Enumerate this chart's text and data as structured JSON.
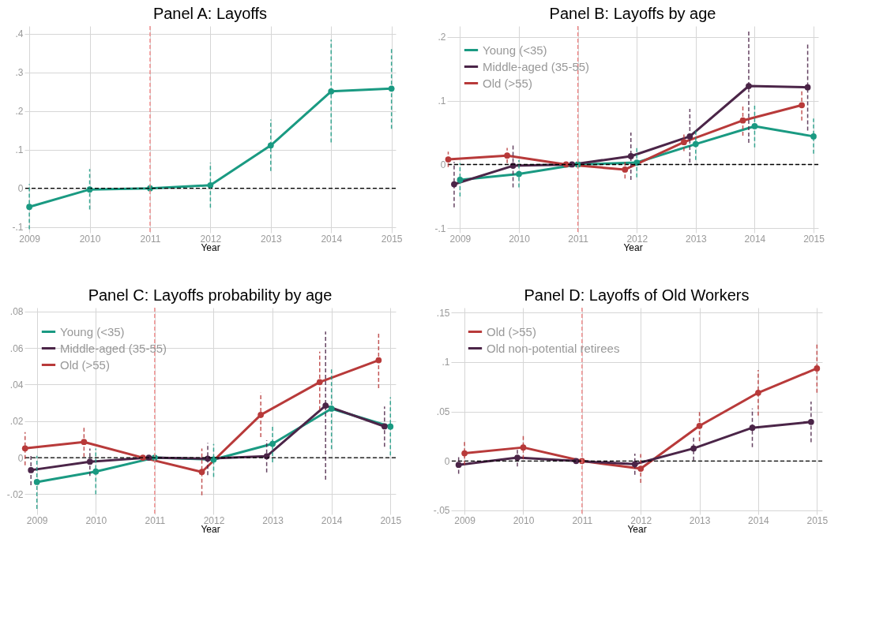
{
  "chart_data": [
    {
      "type": "line",
      "title": "Panel A: Layoffs",
      "xlabel": "Year",
      "xlim": [
        2008.92,
        2015.07
      ],
      "xticks": [
        2009,
        2010,
        2011,
        2012,
        2013,
        2014,
        2015
      ],
      "ylim": [
        -0.115,
        0.42
      ],
      "yticks": [
        {
          "value": -0.1,
          "label": "-.1"
        },
        0,
        {
          "value": 0.1,
          "label": ".1"
        },
        {
          "value": 0.2,
          "label": ".2"
        },
        {
          "value": 0.3,
          "label": ".3"
        },
        {
          "value": 0.4,
          "label": ".4"
        }
      ],
      "grid": true,
      "legend": false,
      "marker": "circle",
      "line_style": "solid",
      "ref_lines": [
        {
          "axis": "y",
          "value": 0,
          "color": "#000000",
          "line_style": "dashed"
        },
        {
          "axis": "x",
          "value": 2011,
          "color": "#f08080",
          "line_style": "dashed"
        }
      ],
      "series": [
        {
          "color": "#1a9a82",
          "x": [
            2009,
            2010,
            2011,
            2012,
            2013,
            2014,
            2015
          ],
          "values": [
            -0.048,
            -0.003,
            0,
            0.008,
            0.111,
            0.251,
            0.258
          ],
          "errors": [
            [
              -0.106,
              0.011
            ],
            [
              -0.055,
              0.05
            ],
            null,
            [
              -0.05,
              0.066
            ],
            [
              0.045,
              0.178
            ],
            [
              0.119,
              0.385
            ],
            [
              0.154,
              0.362
            ]
          ]
        }
      ]
    },
    {
      "type": "line",
      "title": "Panel B: Layoffs by age",
      "xlabel": "Year",
      "xlim": [
        2008.78,
        2015.08
      ],
      "xticks": [
        2009,
        2010,
        2011,
        2012,
        2013,
        2014,
        2015
      ],
      "ylim": [
        -0.107,
        0.217
      ],
      "yticks": [
        {
          "value": -0.1,
          "label": "-.1"
        },
        0,
        {
          "value": 0.1,
          "label": ".1"
        },
        {
          "value": 0.2,
          "label": ".2"
        }
      ],
      "grid": true,
      "legend": "top left",
      "marker": "circle",
      "line_style": "solid",
      "ref_lines": [
        {
          "axis": "y",
          "value": 0,
          "color": "#000000",
          "line_style": "dashed"
        },
        {
          "axis": "x",
          "value": 2011,
          "color": "#f08080",
          "line_style": "dashed"
        }
      ],
      "series": [
        {
          "name": "Young (<35)",
          "color": "#1a9a82",
          "x": [
            2009,
            2010,
            2011,
            2012,
            2013,
            2014,
            2015
          ],
          "values": [
            -0.024,
            -0.015,
            0,
            0.003,
            0.032,
            0.06,
            0.044
          ],
          "errors": [
            [
              -0.05,
              0.002
            ],
            [
              -0.036,
              0.007
            ],
            null,
            [
              -0.02,
              0.026
            ],
            [
              0.007,
              0.055
            ],
            [
              0.027,
              0.092
            ],
            [
              0.017,
              0.072
            ]
          ]
        },
        {
          "name": "Middle-aged (35-55)",
          "color": "#4b2548",
          "x": [
            2008.9,
            2009.9,
            2010.9,
            2011.9,
            2012.9,
            2013.9,
            2014.9
          ],
          "values": [
            -0.031,
            -0.002,
            0,
            0.013,
            0.044,
            0.123,
            0.121
          ],
          "errors": [
            [
              -0.067,
              0.004
            ],
            [
              -0.036,
              0.032
            ],
            null,
            [
              -0.024,
              0.05
            ],
            [
              0.003,
              0.087
            ],
            [
              0.034,
              0.212
            ],
            [
              0.053,
              0.189
            ]
          ]
        },
        {
          "name": "Old (>55)",
          "color": "#b83a3a",
          "x": [
            2008.8,
            2009.8,
            2010.8,
            2011.8,
            2012.8,
            2013.8,
            2014.8
          ],
          "values": [
            0.008,
            0.014,
            0,
            -0.008,
            0.035,
            0.069,
            0.093
          ],
          "errors": [
            [
              -0.004,
              0.02
            ],
            [
              0.002,
              0.026
            ],
            null,
            [
              -0.022,
              0.007
            ],
            [
              0.021,
              0.05
            ],
            [
              0.045,
              0.092
            ],
            [
              0.069,
              0.118
            ]
          ]
        }
      ]
    },
    {
      "type": "line",
      "title": "Panel C: Layoffs probability by age",
      "xlabel": "Year",
      "xlim": [
        2008.79,
        2015.09
      ],
      "xticks": [
        2009,
        2010,
        2011,
        2012,
        2013,
        2014,
        2015
      ],
      "ylim": [
        -0.031,
        0.082
      ],
      "yticks": [
        {
          "value": -0.02,
          "label": "-.02"
        },
        0,
        {
          "value": 0.02,
          "label": ".02"
        },
        {
          "value": 0.04,
          "label": ".04"
        },
        {
          "value": 0.06,
          "label": ".06"
        },
        {
          "value": 0.08,
          "label": ".08"
        }
      ],
      "grid": true,
      "legend": "top left",
      "marker": "circle",
      "line_style": "solid",
      "ref_lines": [
        {
          "axis": "y",
          "value": 0,
          "color": "#000000",
          "line_style": "dashed"
        },
        {
          "axis": "x",
          "value": 2011,
          "color": "#f08080",
          "line_style": "dashed"
        }
      ],
      "series": [
        {
          "name": "Young (<35)",
          "color": "#1a9a82",
          "x": [
            2009,
            2010,
            2011,
            2012,
            2013,
            2014,
            2015
          ],
          "values": [
            -0.0133,
            -0.0076,
            0,
            -0.001,
            0.0076,
            0.0268,
            0.017
          ],
          "errors": [
            [
              -0.028,
              0.001
            ],
            [
              -0.02,
              0.005
            ],
            null,
            [
              -0.0105,
              0.0075
            ],
            [
              -0.0025,
              0.018
            ],
            [
              0.0047,
              0.049
            ],
            [
              0.0012,
              0.033
            ]
          ]
        },
        {
          "name": "Middle-aged (35-55)",
          "color": "#4b2548",
          "x": [
            2008.9,
            2009.9,
            2010.9,
            2011.9,
            2012.9,
            2013.9,
            2014.9
          ],
          "values": [
            -0.0068,
            -0.0022,
            0,
            -0.0005,
            0.0008,
            0.0285,
            0.0171
          ],
          "errors": [
            [
              -0.015,
              0.001
            ],
            [
              -0.01,
              0.005
            ],
            null,
            [
              -0.0095,
              0.008
            ],
            [
              -0.008,
              0.0095
            ],
            [
              -0.012,
              0.069
            ],
            [
              0.006,
              0.028
            ]
          ]
        },
        {
          "name": "Old (>55)",
          "color": "#b83a3a",
          "x": [
            2008.8,
            2009.8,
            2010.8,
            2011.8,
            2012.8,
            2013.8,
            2014.8
          ],
          "values": [
            0.0051,
            0.0086,
            0,
            -0.0078,
            0.0234,
            0.0413,
            0.0533
          ],
          "errors": [
            [
              -0.0042,
              0.014
            ],
            [
              0.0004,
              0.017
            ],
            null,
            [
              -0.0205,
              0.005
            ],
            [
              0.0113,
              0.0355
            ],
            [
              0.026,
              0.058
            ],
            [
              0.038,
              0.069
            ]
          ]
        }
      ]
    },
    {
      "type": "line",
      "title": "Panel D: Layoffs of Old Workers",
      "xlabel": "Year",
      "xlim": [
        2008.77,
        2015.09
      ],
      "xticks": [
        2009,
        2010,
        2011,
        2012,
        2013,
        2014,
        2015
      ],
      "ylim": [
        -0.054,
        0.155
      ],
      "yticks": [
        {
          "value": -0.05,
          "label": "-.05"
        },
        0,
        {
          "value": 0.05,
          "label": ".05"
        },
        {
          "value": 0.1,
          "label": ".1"
        },
        {
          "value": 0.15,
          "label": ".15"
        }
      ],
      "grid": true,
      "legend": "top left",
      "marker": "circle",
      "line_style": "solid",
      "ref_lines": [
        {
          "axis": "y",
          "value": 0,
          "color": "#000000",
          "line_style": "dashed"
        },
        {
          "axis": "x",
          "value": 2011,
          "color": "#f08080",
          "line_style": "dashed"
        }
      ],
      "series": [
        {
          "name": "Old (>55)",
          "color": "#b83a3a",
          "x": [
            2009,
            2010,
            2011,
            2012,
            2013,
            2014,
            2015
          ],
          "values": [
            0.0078,
            0.0137,
            0,
            -0.0078,
            0.0355,
            0.069,
            0.0936
          ],
          "errors": [
            [
              -0.004,
              0.02
            ],
            [
              0.002,
              0.026
            ],
            null,
            [
              -0.022,
              0.007
            ],
            [
              0.02,
              0.05
            ],
            [
              0.046,
              0.092
            ],
            [
              0.069,
              0.118
            ]
          ]
        },
        {
          "name": "Old non-potential retirees",
          "color": "#4b2548",
          "x": [
            2008.9,
            2009.9,
            2010.9,
            2011.9,
            2012.9,
            2013.9,
            2014.9
          ],
          "values": [
            -0.0039,
            0.0034,
            0,
            -0.0032,
            0.0127,
            0.0336,
            0.0395
          ],
          "errors": [
            [
              -0.013,
              0.005
            ],
            [
              -0.0055,
              0.012
            ],
            null,
            [
              -0.014,
              0.0075
            ],
            [
              0.0005,
              0.024
            ],
            [
              0.014,
              0.053
            ],
            [
              0.019,
              0.06
            ]
          ]
        }
      ]
    }
  ]
}
